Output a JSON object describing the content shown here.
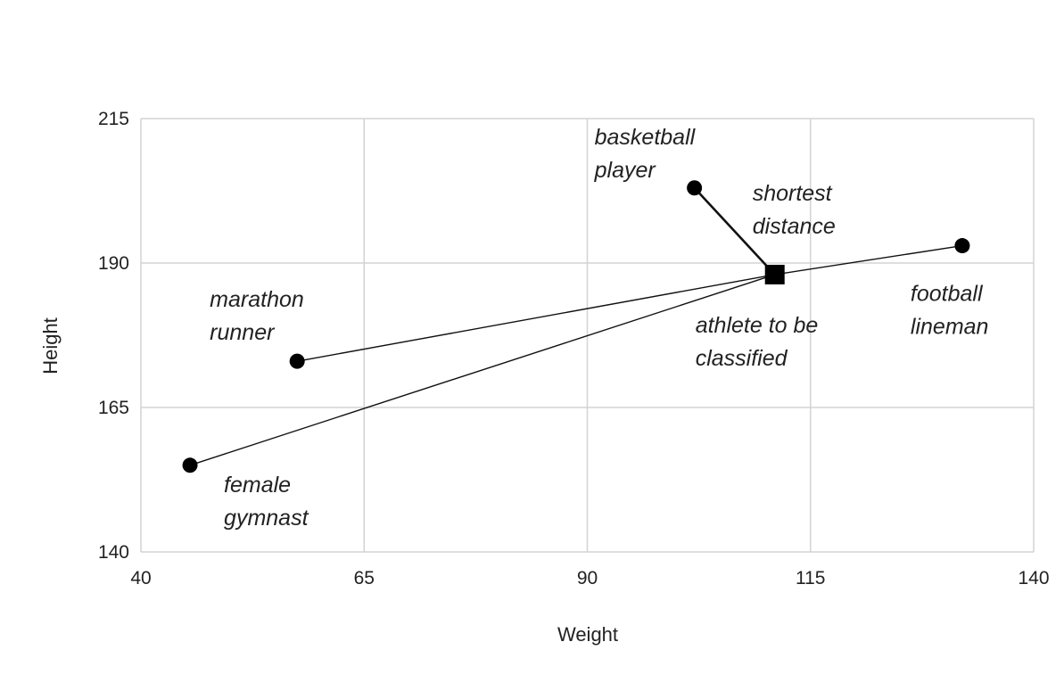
{
  "chart_data": {
    "type": "scatter",
    "title": "",
    "xlabel": "Weight",
    "ylabel": "Height",
    "xlim": [
      40,
      140
    ],
    "ylim": [
      140,
      215
    ],
    "xticks": [
      40,
      65,
      90,
      115,
      140
    ],
    "yticks": [
      140,
      165,
      190,
      215
    ],
    "xtick_labels": [
      "40",
      "65",
      "90",
      "115",
      "140"
    ],
    "ytick_labels": [
      "140",
      "165",
      "190",
      "215"
    ],
    "grid": true,
    "legend": "none",
    "points": [
      {
        "id": "female-gymnast",
        "label_lines": [
          "female",
          "gymnast"
        ],
        "x": 45.5,
        "y": 155,
        "marker": "circle"
      },
      {
        "id": "marathon-runner",
        "label_lines": [
          "marathon",
          "runner"
        ],
        "x": 57.5,
        "y": 173,
        "marker": "circle"
      },
      {
        "id": "basketball-player",
        "label_lines": [
          "basketball",
          "player"
        ],
        "x": 102,
        "y": 203,
        "marker": "circle"
      },
      {
        "id": "football-lineman",
        "label_lines": [
          "football",
          "lineman"
        ],
        "x": 132,
        "y": 193,
        "marker": "circle"
      },
      {
        "id": "athlete-to-be-classified",
        "label_lines": [
          "athlete to be",
          "classified"
        ],
        "x": 111,
        "y": 188,
        "marker": "square"
      }
    ],
    "connections": [
      {
        "from": "female-gymnast",
        "to": "athlete-to-be-classified"
      },
      {
        "from": "marathon-runner",
        "to": "athlete-to-be-classified"
      },
      {
        "from": "football-lineman",
        "to": "athlete-to-be-classified"
      },
      {
        "from": "basketball-player",
        "to": "athlete-to-be-classified",
        "emphasis": "bold"
      }
    ],
    "annotations": [
      {
        "id": "shortest-distance",
        "text_lines": [
          "shortest",
          "distance"
        ]
      }
    ]
  }
}
